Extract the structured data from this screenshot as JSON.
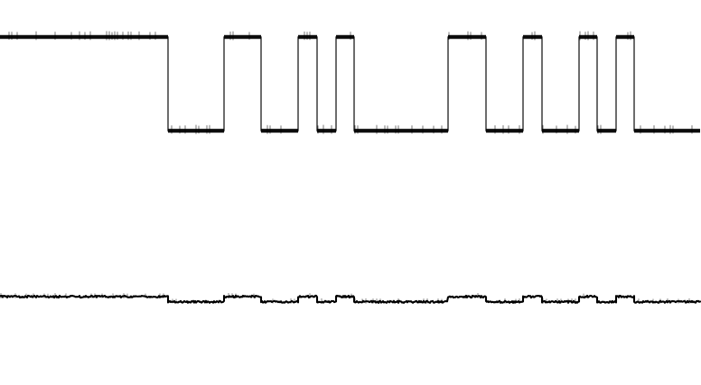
{
  "chart_data": {
    "type": "line",
    "title": "",
    "xlabel": "",
    "ylabel": "",
    "grid": false,
    "legend": "none",
    "colors": {
      "background": "#ffffff",
      "trace": "#000000"
    },
    "x_range": [
      0,
      775
    ],
    "y_range": [
      0,
      1
    ],
    "series": [
      {
        "type": "digital-step",
        "high": 1,
        "low": 0,
        "points": [
          [
            0,
            1
          ],
          [
            186,
            1
          ],
          [
            186,
            0
          ],
          [
            248,
            0
          ],
          [
            248,
            1
          ],
          [
            289,
            1
          ],
          [
            289,
            0
          ],
          [
            330,
            0
          ],
          [
            330,
            1
          ],
          [
            351,
            1
          ],
          [
            351,
            0
          ],
          [
            372,
            0
          ],
          [
            372,
            1
          ],
          [
            392,
            1
          ],
          [
            392,
            0
          ],
          [
            496,
            0
          ],
          [
            496,
            1
          ],
          [
            538,
            1
          ],
          [
            538,
            0
          ],
          [
            579,
            0
          ],
          [
            579,
            1
          ],
          [
            600,
            1
          ],
          [
            600,
            0
          ],
          [
            641,
            0
          ],
          [
            641,
            1
          ],
          [
            661,
            1
          ],
          [
            661,
            0
          ],
          [
            682,
            0
          ],
          [
            682,
            1
          ],
          [
            702,
            1
          ],
          [
            702,
            0
          ],
          [
            775,
            0
          ]
        ]
      },
      {
        "type": "analog-low-amplitude",
        "segments": [
          [
            0,
            186,
            1
          ],
          [
            186,
            248,
            0
          ],
          [
            248,
            289,
            1
          ],
          [
            289,
            330,
            0
          ],
          [
            330,
            351,
            1
          ],
          [
            351,
            372,
            0
          ],
          [
            372,
            392,
            1
          ],
          [
            392,
            496,
            0
          ],
          [
            496,
            538,
            1
          ],
          [
            538,
            579,
            0
          ],
          [
            579,
            600,
            1
          ],
          [
            600,
            641,
            0
          ],
          [
            641,
            661,
            1
          ],
          [
            661,
            682,
            0
          ],
          [
            682,
            702,
            1
          ],
          [
            702,
            775,
            0
          ]
        ]
      }
    ]
  }
}
